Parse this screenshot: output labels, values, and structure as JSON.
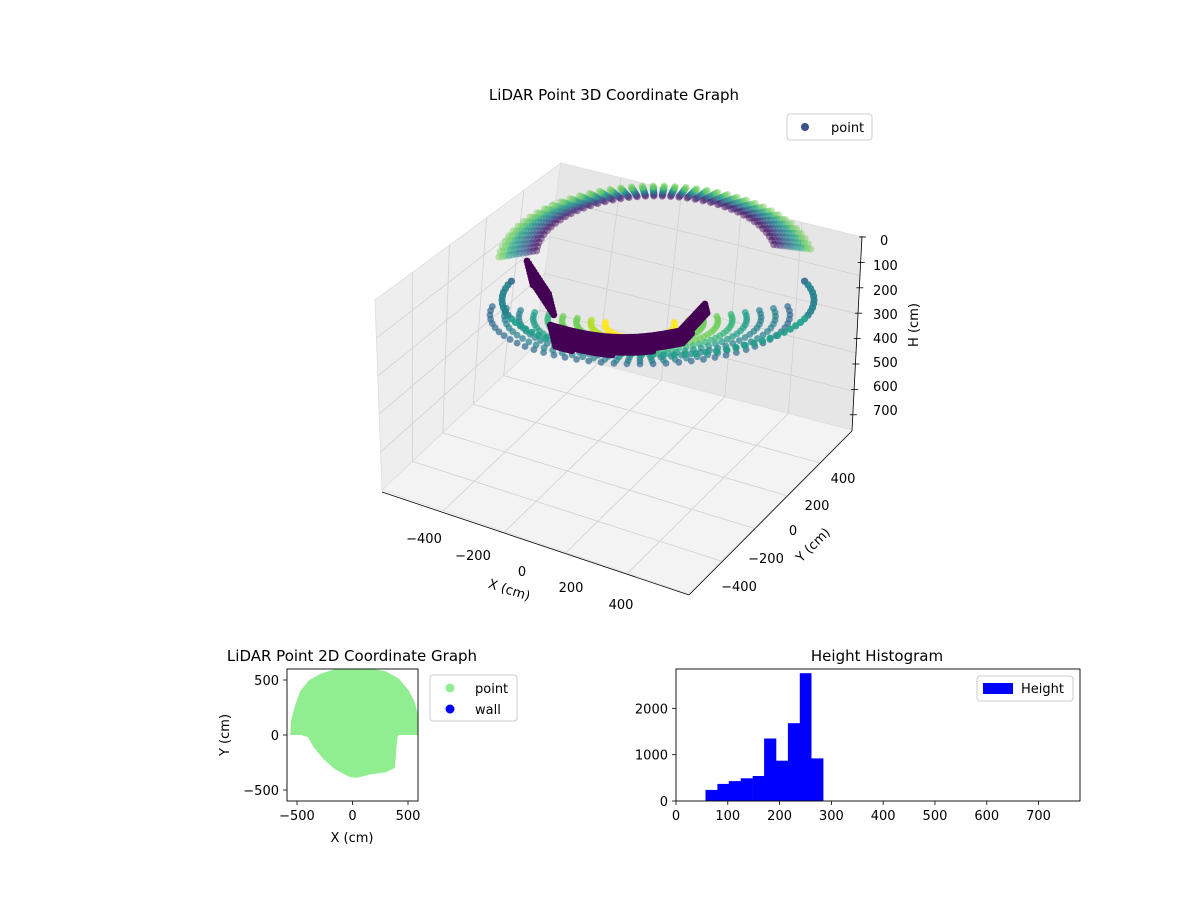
{
  "figure_colors": {
    "background": "#ffffff",
    "pane_light": "#f5f5f5",
    "pane_mid": "#ececec",
    "pane_dark": "#e2e2e2",
    "grid": "#cccccc",
    "point_2d": "#90ee90",
    "wall_2d": "#0000ff",
    "histogram_bar": "#0000ff",
    "legend_point_3d": "#3b528b"
  },
  "chart_data": [
    {
      "type": "scatter",
      "projection": "3d",
      "title": "LiDAR Point 3D Coordinate Graph",
      "xlabel": "X (cm)",
      "ylabel": "Y (cm)",
      "zlabel": "H (cm)",
      "x_ticks": [
        "−400",
        "−200",
        "0",
        "200",
        "400"
      ],
      "y_ticks": [
        "−400",
        "−200",
        "0",
        "200",
        "400"
      ],
      "z_ticks": [
        "0",
        "100",
        "200",
        "300",
        "400",
        "500",
        "600",
        "700"
      ],
      "xlim": [
        -600,
        600
      ],
      "ylim": [
        -500,
        600
      ],
      "zlim": [
        0,
        760
      ],
      "z_inverted": true,
      "colormap": "viridis",
      "grid": true,
      "legend": {
        "entries": [
          "point"
        ],
        "placement": "upper-right"
      },
      "shape_description": "hemispherical shell of ring points (wall) plus dark curved arc of floor points"
    },
    {
      "type": "scatter",
      "title": "LiDAR Point 2D Coordinate Graph",
      "xlabel": "X (cm)",
      "ylabel": "Y (cm)",
      "xlim": [
        -590,
        590
      ],
      "ylim": [
        -600,
        600
      ],
      "x_ticks": [
        -500,
        0,
        500
      ],
      "y_ticks": [
        -500,
        0,
        500
      ],
      "series": [
        {
          "name": "point",
          "color": "#90ee90"
        },
        {
          "name": "wall",
          "color": "#0000ff"
        }
      ],
      "outline": [
        [
          -560,
          0
        ],
        [
          -555,
          120
        ],
        [
          -520,
          260
        ],
        [
          -470,
          400
        ],
        [
          -390,
          500
        ],
        [
          -280,
          560
        ],
        [
          -150,
          600
        ],
        [
          0,
          610
        ],
        [
          150,
          605
        ],
        [
          300,
          580
        ],
        [
          420,
          510
        ],
        [
          510,
          400
        ],
        [
          560,
          300
        ],
        [
          590,
          180
        ],
        [
          590,
          0
        ],
        [
          410,
          0
        ],
        [
          400,
          -60
        ],
        [
          390,
          -200
        ],
        [
          380,
          -300
        ],
        [
          300,
          -340
        ],
        [
          150,
          -360
        ],
        [
          40,
          -390
        ],
        [
          -30,
          -380
        ],
        [
          -160,
          -310
        ],
        [
          -260,
          -220
        ],
        [
          -350,
          -110
        ],
        [
          -400,
          -20
        ],
        [
          -460,
          0
        ]
      ],
      "legend": {
        "placement": "outside-right"
      }
    },
    {
      "type": "bar",
      "subtype": "histogram",
      "title": "Height Histogram",
      "xlabel": "",
      "ylabel": "",
      "xlim": [
        0,
        780
      ],
      "ylim": [
        0,
        2850
      ],
      "x_ticks": [
        0,
        100,
        200,
        300,
        400,
        500,
        600,
        700
      ],
      "y_ticks": [
        0,
        1000,
        2000
      ],
      "bins": [
        {
          "x0": 57,
          "x1": 80,
          "count": 240
        },
        {
          "x0": 80,
          "x1": 102,
          "count": 370
        },
        {
          "x0": 102,
          "x1": 125,
          "count": 430
        },
        {
          "x0": 125,
          "x1": 148,
          "count": 490
        },
        {
          "x0": 148,
          "x1": 170,
          "count": 540
        },
        {
          "x0": 170,
          "x1": 193,
          "count": 1350
        },
        {
          "x0": 193,
          "x1": 216,
          "count": 870
        },
        {
          "x0": 216,
          "x1": 239,
          "count": 1680
        },
        {
          "x0": 239,
          "x1": 261,
          "count": 2760
        },
        {
          "x0": 261,
          "x1": 284,
          "count": 920
        }
      ],
      "legend": {
        "entries": [
          "Height"
        ],
        "placement": "upper-right"
      }
    }
  ]
}
